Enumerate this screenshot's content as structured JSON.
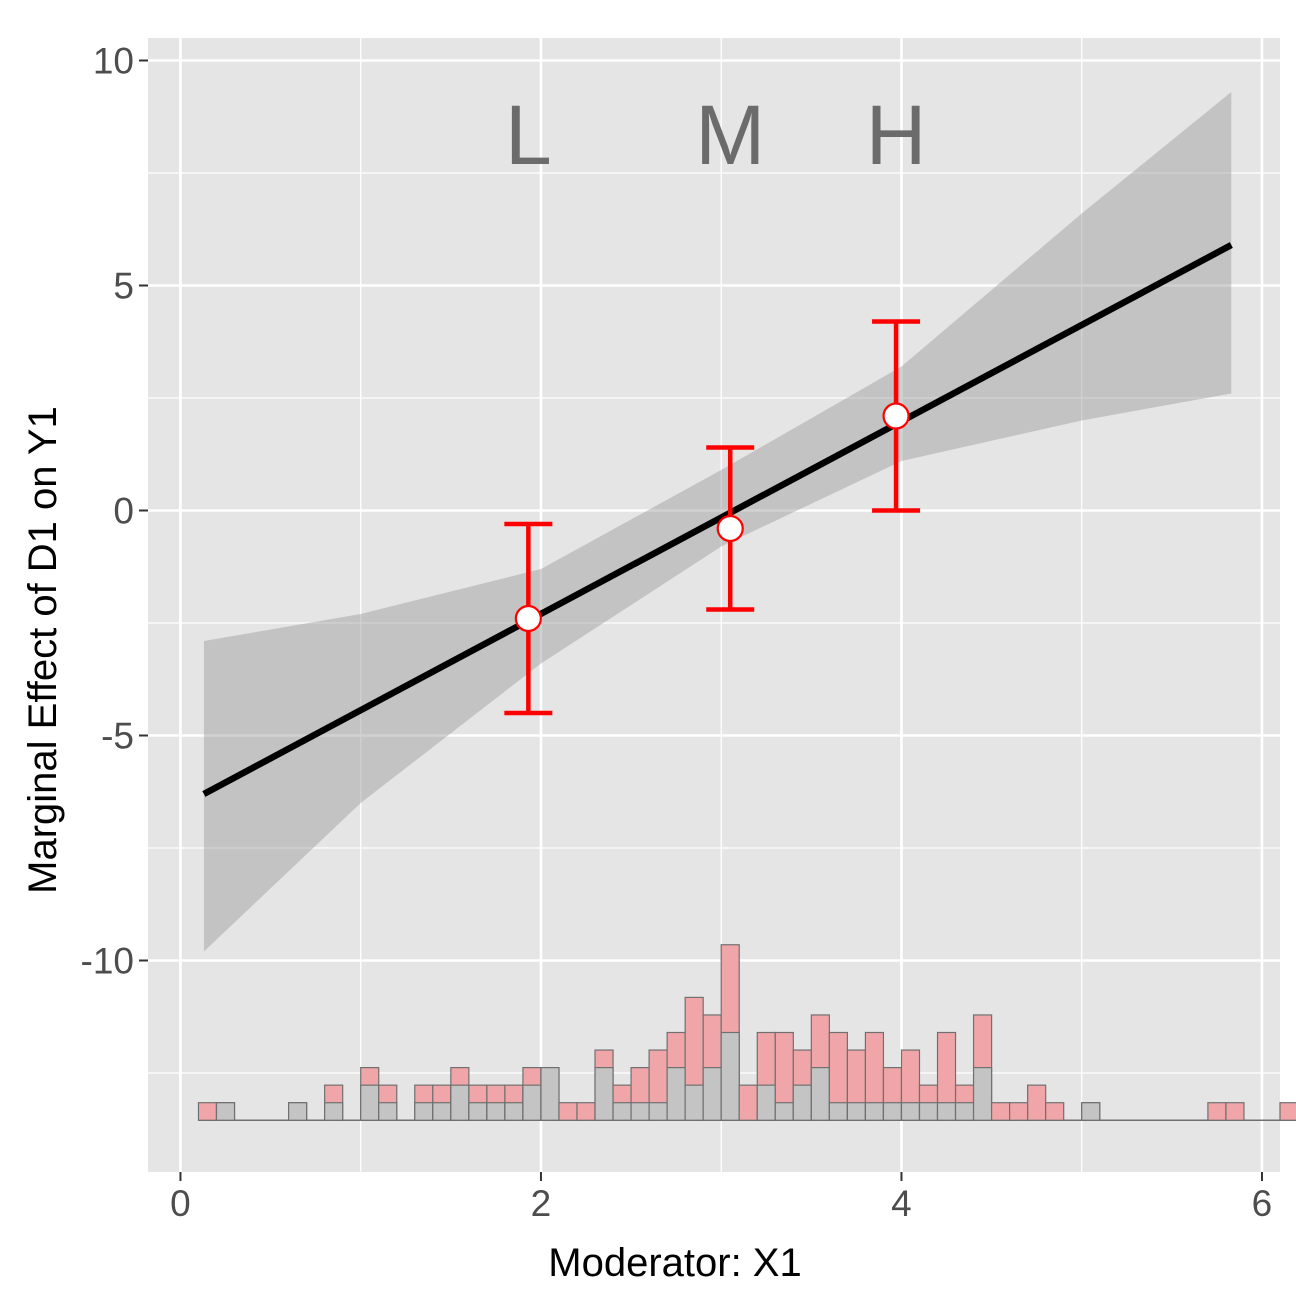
{
  "chart_data": {
    "type": "line",
    "title": "",
    "xlabel": "Moderator: X1",
    "ylabel": "Marginal Effect of D1 on Y1",
    "xlim": [
      -0.18,
      6.1
    ],
    "ylim": [
      -14.7,
      10.5
    ],
    "x_ticks": [
      0,
      2,
      4,
      6
    ],
    "x_tick_labels": [
      "0",
      "2",
      "4",
      "6"
    ],
    "y_ticks": [
      -10,
      -5,
      0,
      5,
      10
    ],
    "y_tick_labels": [
      "-10",
      "-5",
      "0",
      "5",
      "10"
    ],
    "grid": true,
    "zero_line": 0,
    "colors": {
      "panel": "#e5e5e5",
      "grid": "#ffffff",
      "line": "#000000",
      "ribbon": "#999999",
      "estimate": "#ff0000",
      "hist_treated": "#f0a6a8",
      "hist_control": "#c4c4c4",
      "hist_border": "#707070"
    },
    "linear_estimate": {
      "x": [
        0.13,
        5.83
      ],
      "y": [
        -6.3,
        5.9
      ]
    },
    "confidence_band": {
      "x": [
        0.13,
        1.0,
        2.0,
        3.0,
        4.0,
        5.0,
        5.83
      ],
      "lower": [
        -9.8,
        -6.5,
        -3.4,
        -0.8,
        1.1,
        2.0,
        2.6
      ],
      "upper": [
        -2.9,
        -2.3,
        -1.3,
        0.9,
        3.2,
        6.6,
        9.3
      ]
    },
    "binned_estimates": {
      "labels": [
        "L",
        "M",
        "H"
      ],
      "x": [
        1.93,
        3.05,
        3.97
      ],
      "estimate": [
        -2.4,
        -0.4,
        2.1
      ],
      "lower": [
        -4.5,
        -2.2,
        0.0
      ],
      "upper": [
        -0.3,
        1.4,
        4.2
      ]
    },
    "histogram": {
      "baseline": -13.55,
      "count_unit": 0.39,
      "bin_start": 0.1,
      "bin_width": 0.1,
      "total_counts": [
        1,
        1,
        0,
        0,
        0,
        1,
        0,
        2,
        0,
        3,
        2,
        0,
        2,
        2,
        3,
        2,
        2,
        2,
        3,
        3,
        1,
        1,
        4,
        2,
        3,
        4,
        5,
        7,
        6,
        10,
        2,
        5,
        5,
        4,
        6,
        5,
        4,
        5,
        3,
        4,
        2,
        5,
        2,
        6,
        1,
        1,
        2,
        1,
        0,
        1,
        0,
        0,
        0,
        0,
        0,
        0,
        1,
        1,
        0,
        0,
        1
      ],
      "control_counts": [
        0,
        1,
        0,
        0,
        0,
        1,
        0,
        1,
        0,
        2,
        1,
        0,
        1,
        1,
        2,
        1,
        1,
        1,
        2,
        3,
        0,
        0,
        3,
        1,
        1,
        1,
        3,
        2,
        3,
        5,
        0,
        2,
        1,
        2,
        3,
        1,
        1,
        1,
        1,
        1,
        1,
        1,
        1,
        3,
        0,
        0,
        0,
        0,
        0,
        1,
        0,
        0,
        0,
        0,
        0,
        0,
        0,
        0,
        0,
        0,
        0
      ]
    }
  }
}
